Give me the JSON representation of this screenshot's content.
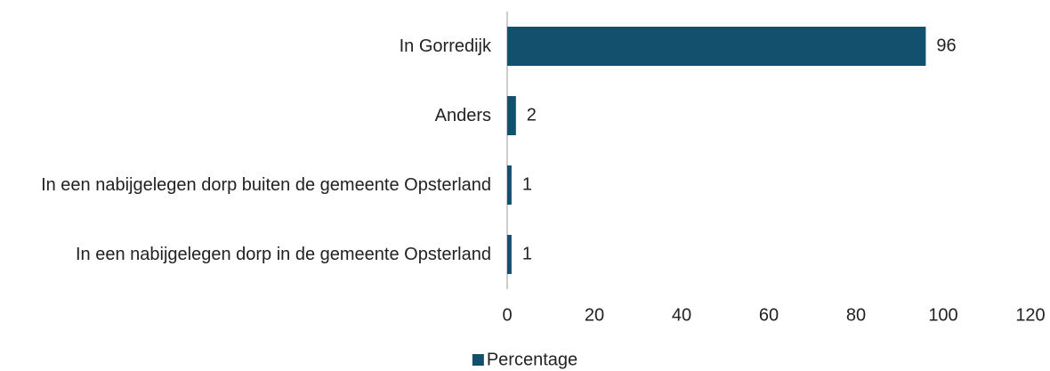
{
  "chart_data": {
    "type": "bar",
    "orientation": "horizontal",
    "categories": [
      "In Gorredijk",
      "Anders",
      "In een nabijgelegen dorp buiten de gemeente Opsterland",
      "In een nabijgelegen dorp in de gemeente Opsterland"
    ],
    "series": [
      {
        "name": "Percentage",
        "color": "#12506e",
        "values": [
          96,
          2,
          1,
          1
        ]
      }
    ],
    "xlim": [
      0,
      120
    ],
    "xticks": [
      0,
      20,
      40,
      60,
      80,
      100,
      120
    ],
    "legend": "bottom"
  }
}
